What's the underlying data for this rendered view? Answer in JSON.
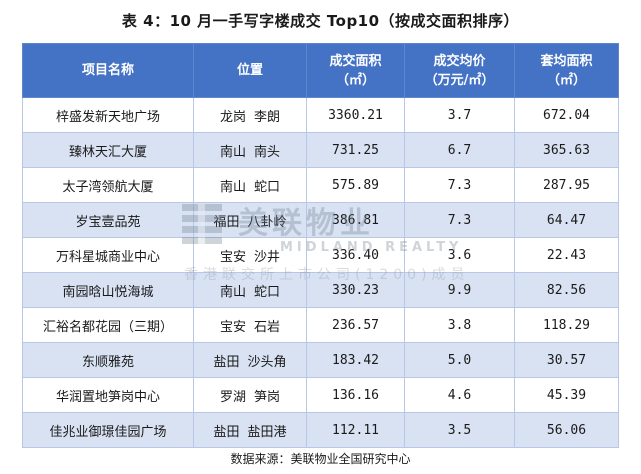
{
  "caption": "表 4：10 月一手写字楼成交 Top10（按成交面积排序）",
  "headers": {
    "name": "项目名称",
    "location": "位置",
    "area_line1": "成交面积",
    "area_line2": "（㎡）",
    "price_line1": "成交均价",
    "price_line2": "（万元/㎡）",
    "avg_line1": "套均面积",
    "avg_line2": "（㎡）"
  },
  "rows": [
    {
      "name": "梓盛发新天地广场",
      "district": "龙岗",
      "area_name": "李朗",
      "area": "3360.21",
      "price": "3.7",
      "avg": "672.04"
    },
    {
      "name": "臻林天汇大厦",
      "district": "南山",
      "area_name": "南头",
      "area": "731.25",
      "price": "6.7",
      "avg": "365.63"
    },
    {
      "name": "太子湾领航大厦",
      "district": "南山",
      "area_name": "蛇口",
      "area": "575.89",
      "price": "7.3",
      "avg": "287.95"
    },
    {
      "name": "岁宝壹品苑",
      "district": "福田",
      "area_name": "八卦岭",
      "area": "386.81",
      "price": "7.3",
      "avg": "64.47"
    },
    {
      "name": "万科星城商业中心",
      "district": "宝安",
      "area_name": "沙井",
      "area": "336.40",
      "price": "3.6",
      "avg": "22.43"
    },
    {
      "name": "南园晗山悦海城",
      "district": "南山",
      "area_name": "蛇口",
      "area": "330.23",
      "price": "9.9",
      "avg": "82.56"
    },
    {
      "name": "汇裕名都花园（三期）",
      "district": "宝安",
      "area_name": "石岩",
      "area": "236.57",
      "price": "3.8",
      "avg": "118.29"
    },
    {
      "name": "东顺雅苑",
      "district": "盐田",
      "area_name": "沙头角",
      "area": "183.42",
      "price": "5.0",
      "avg": "30.57"
    },
    {
      "name": "华润置地笋岗中心",
      "district": "罗湖",
      "area_name": "笋岗",
      "area": "136.16",
      "price": "4.6",
      "avg": "45.39"
    },
    {
      "name": "佳兆业御璟佳园广场",
      "district": "盐田",
      "area_name": "盐田港",
      "area": "112.11",
      "price": "3.5",
      "avg": "56.06"
    }
  ],
  "source": "数据来源：美联物业全国研究中心",
  "watermark": {
    "cn": "美联物业",
    "en": "MIDLAND REALTY",
    "sub": "香港联交所上市公司(1200)成员",
    "color": "#6f7f8f"
  },
  "colors": {
    "header_bg": "#4472c4",
    "stripe_bg": "#d9e2f3"
  }
}
